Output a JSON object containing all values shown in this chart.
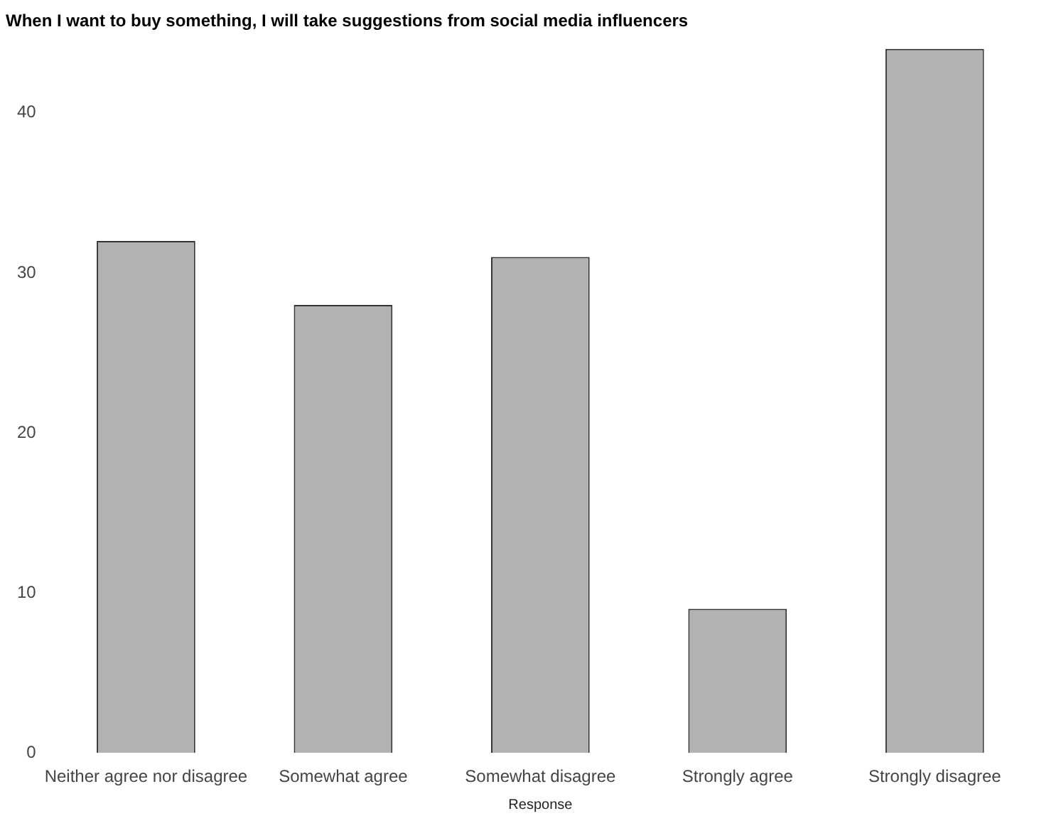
{
  "chart_data": {
    "type": "bar",
    "title": "When I want to buy something, I will take suggestions from social media influencers",
    "xlabel": "Response",
    "categories": [
      "Neither agree nor disagree",
      "Somewhat agree",
      "Somewhat disagree",
      "Strongly agree",
      "Strongly disagree"
    ],
    "values": [
      32,
      28,
      31,
      9,
      44
    ],
    "color": "#b2b2b2",
    "ylim": [
      0,
      44
    ],
    "yticks": [
      0,
      10,
      20,
      30,
      40
    ],
    "grid": false,
    "legend": false
  }
}
